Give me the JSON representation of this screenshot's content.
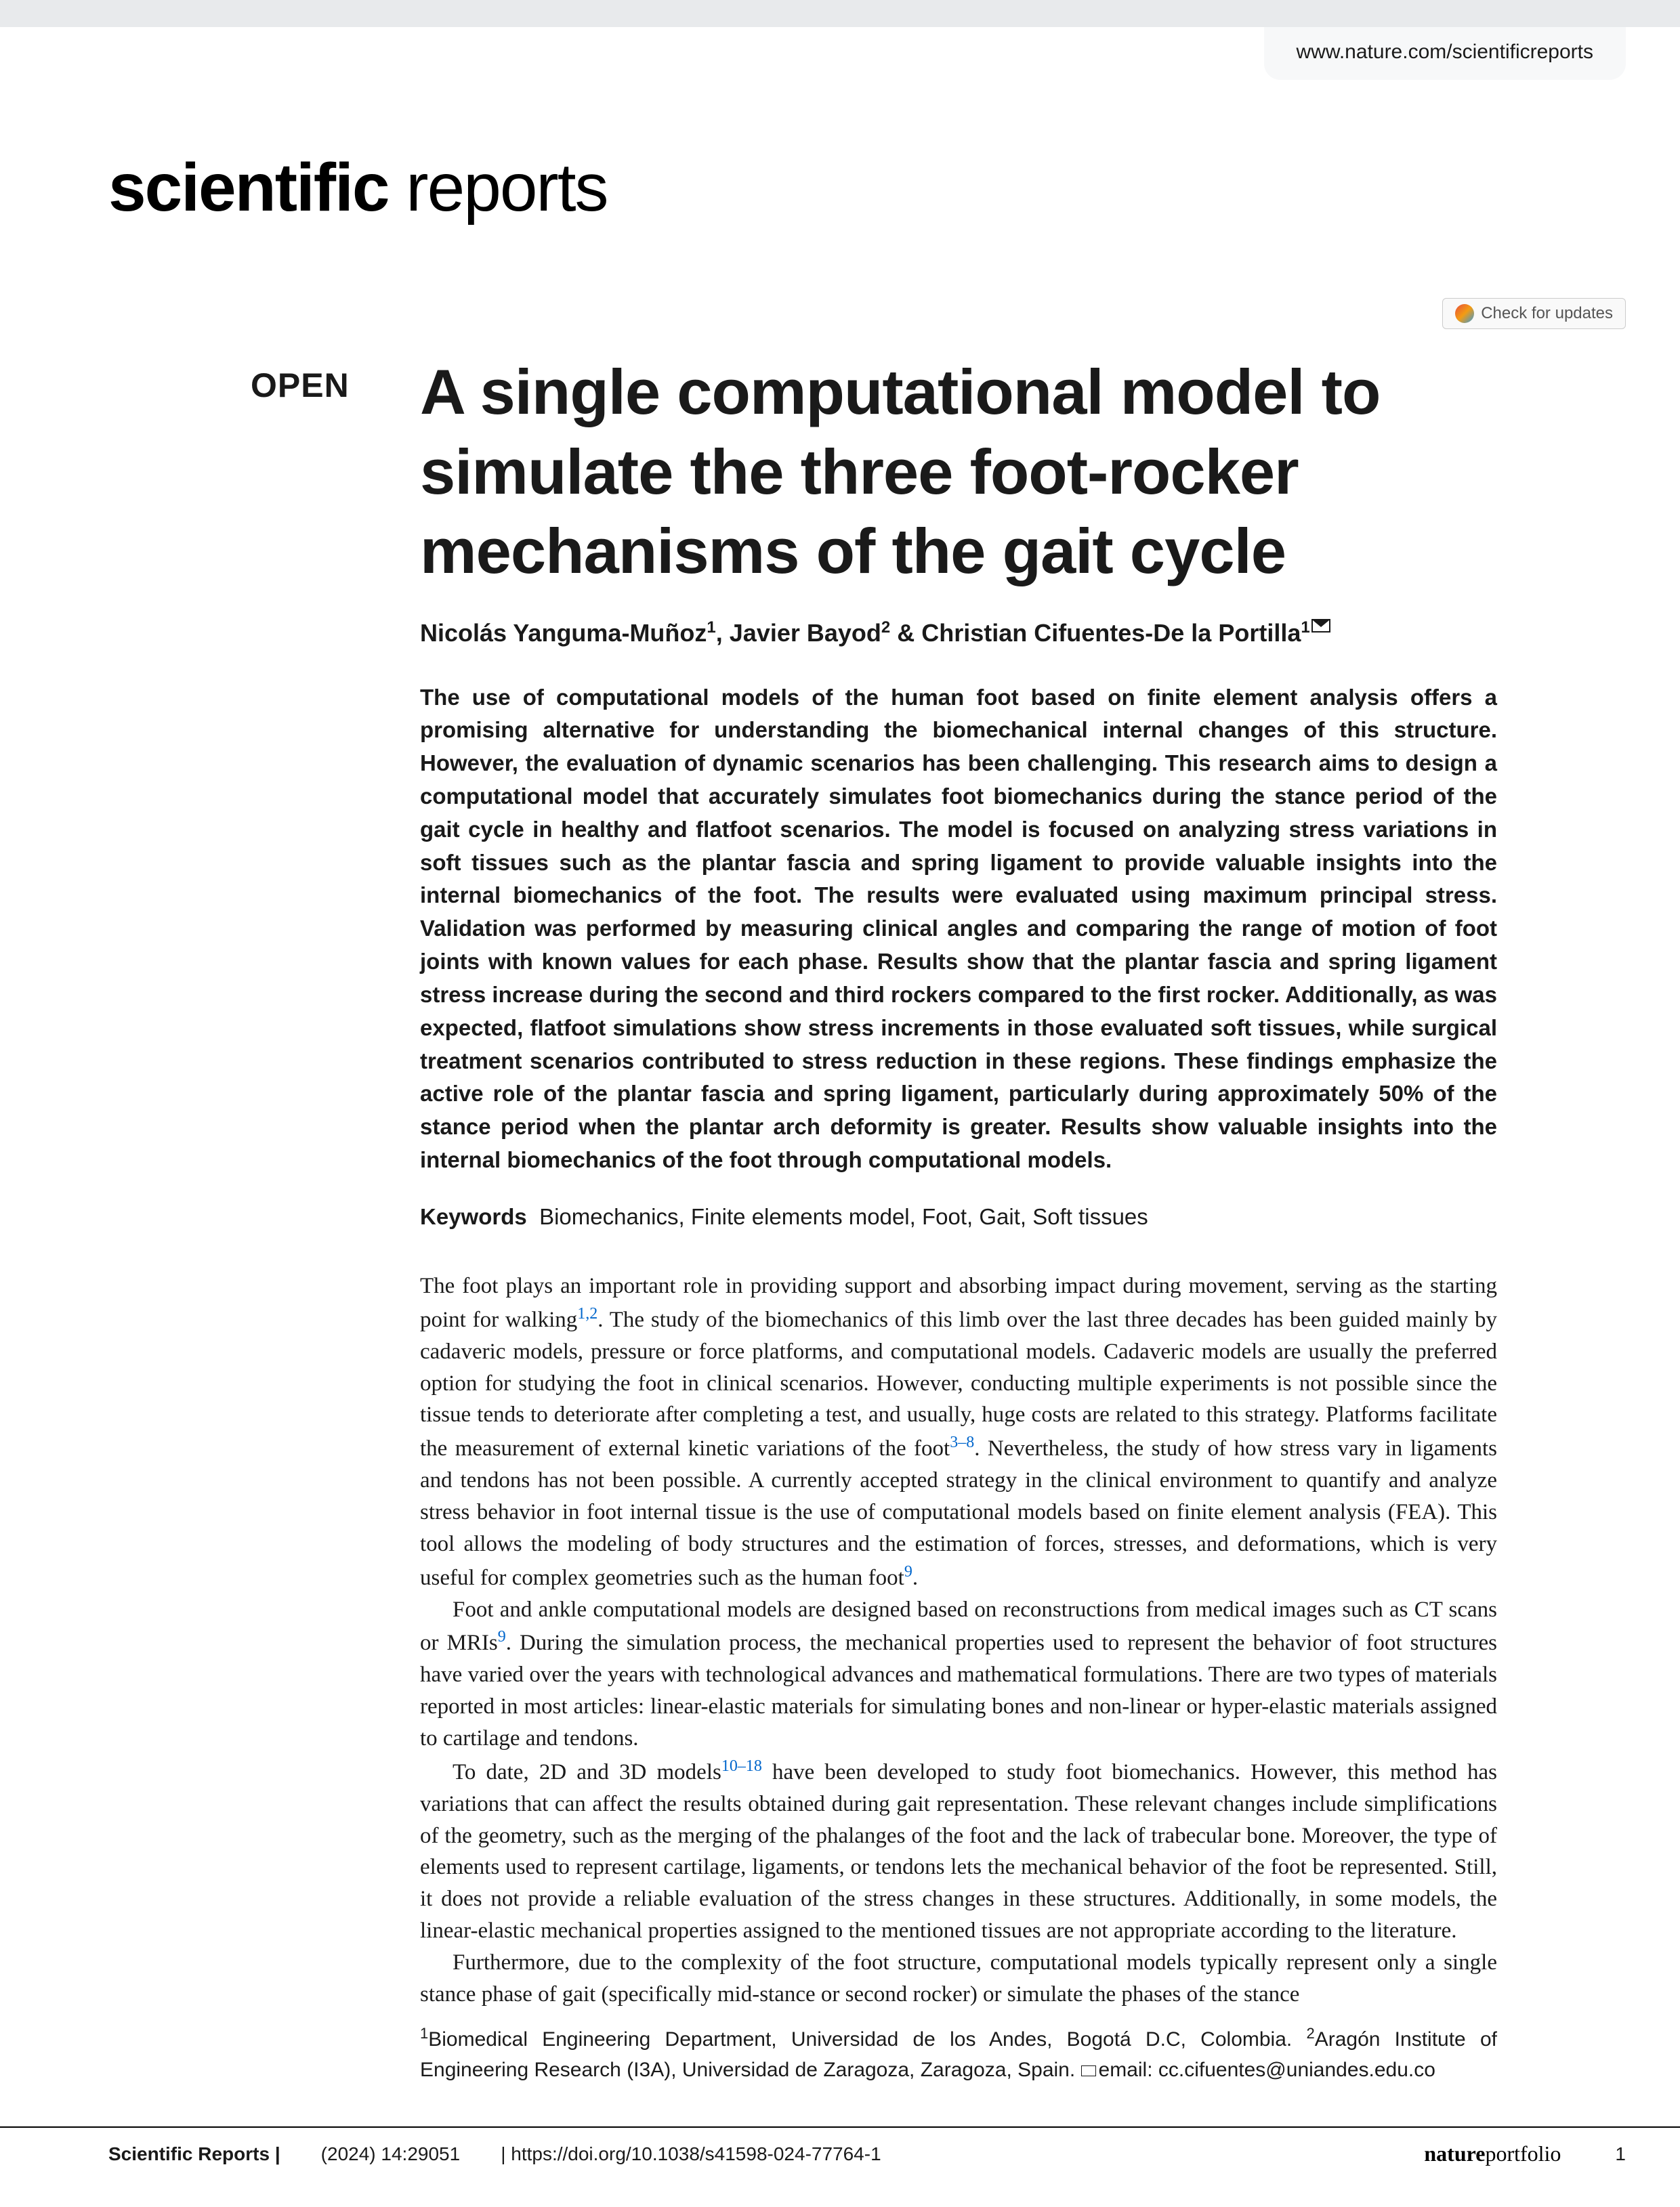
{
  "url": "www.nature.com/scientificreports",
  "journal": {
    "bold": "scientific",
    "light": " reports"
  },
  "check_updates": "Check for updates",
  "open_label": "OPEN",
  "title": "A single computational model to simulate the three foot-rocker mechanisms of the gait cycle",
  "authors_html": "Nicolás Yanguma-Muñoz<sup>1</sup>, Javier Bayod<sup>2</sup> & Christian Cifuentes-De la Portilla<sup>1</sup>",
  "abstract": "The use of computational models of the human foot based on finite element analysis offers a promising alternative for understanding the biomechanical internal changes of this structure. However, the evaluation of dynamic scenarios has been challenging. This research aims to design a computational model that accurately simulates foot biomechanics during the stance period of the gait cycle in healthy and flatfoot scenarios. The model is focused on analyzing stress variations in soft tissues such as the plantar fascia and spring ligament to provide valuable insights into the internal biomechanics of the foot. The results were evaluated using maximum principal stress. Validation was performed by measuring clinical angles and comparing the range of motion of foot joints with known values for each phase. Results show that the plantar fascia and spring ligament stress increase during the second and third rockers compared to the first rocker. Additionally, as was expected, flatfoot simulations show stress increments in those evaluated soft tissues, while surgical treatment scenarios contributed to stress reduction in these regions. These findings emphasize the active role of the plantar fascia and spring ligament, particularly during approximately 50% of the stance period when the plantar arch deformity is greater. Results show valuable insights into the internal biomechanics of the foot through computational models.",
  "keywords_label": "Keywords",
  "keywords": "Biomechanics, Finite elements model, Foot, Gait, Soft tissues",
  "para1_a": "The foot plays an important role in providing support and absorbing impact during movement, serving as the starting point for walking",
  "para1_cite1": "1,2",
  "para1_b": ". The study of the biomechanics of this limb over the last three decades has been guided mainly by cadaveric models, pressure or force platforms, and computational models. Cadaveric models are usually the preferred option for studying the foot in clinical scenarios. However, conducting multiple experiments is not possible since the tissue tends to deteriorate after completing a test, and usually, huge costs are related to this strategy. Platforms facilitate the measurement of external kinetic variations of the foot",
  "para1_cite2": "3–8",
  "para1_c": ". Nevertheless, the study of how stress vary in ligaments and tendons has not been possible. A currently accepted strategy in the clinical environment to quantify and analyze stress behavior in foot internal tissue is the use of computational models based on finite element analysis (FEA). This tool allows the modeling of body structures and the estimation of forces, stresses, and deformations, which is very useful for complex geometries such as the human foot",
  "para1_cite3": "9",
  "para1_d": ".",
  "para2_a": "Foot and ankle computational models are designed based on reconstructions from medical images such as CT scans or MRIs",
  "para2_cite1": "9",
  "para2_b": ". During the simulation process, the mechanical properties used to represent the behavior of foot structures have varied over the years with technological advances and mathematical formulations. There are two types of materials reported in most articles: linear-elastic materials for simulating bones and non-linear or hyper-elastic materials assigned to cartilage and tendons.",
  "para3_a": "To date, 2D and 3D models",
  "para3_cite1": "10–18",
  "para3_b": " have been developed to study foot biomechanics. However, this method has variations that can affect the results obtained during gait representation. These relevant changes include simplifications of the geometry, such as the merging of the phalanges of the foot and the lack of trabecular bone. Moreover, the type of elements used to represent cartilage, ligaments, or tendons lets the mechanical behavior of the foot be represented. Still, it does not provide a reliable evaluation of the stress changes in these structures. Additionally, in some models, the linear-elastic mechanical properties assigned to the mentioned tissues are not appropriate according to the literature.",
  "para4": "Furthermore, due to the complexity of the foot structure, computational models typically represent only a single stance phase of gait (specifically mid-stance or second rocker) or simulate the phases of the stance",
  "affiliations_html": "<sup>1</sup>Biomedical Engineering Department, Universidad de los Andes, Bogotá D.C, Colombia. <sup>2</sup>Aragón Institute of Engineering Research (I3A), Universidad de Zaragoza, Zaragoza, Spain. ",
  "aff_email": "email: cc.cifuentes@uniandes.edu.co",
  "footer": {
    "journal": "Scientific Reports |",
    "citation": "(2024) 14:29051",
    "doi": "| https://doi.org/10.1038/s41598-024-77764-1",
    "portfolio_b": "nature",
    "portfolio_l": "portfolio",
    "page": "1"
  }
}
